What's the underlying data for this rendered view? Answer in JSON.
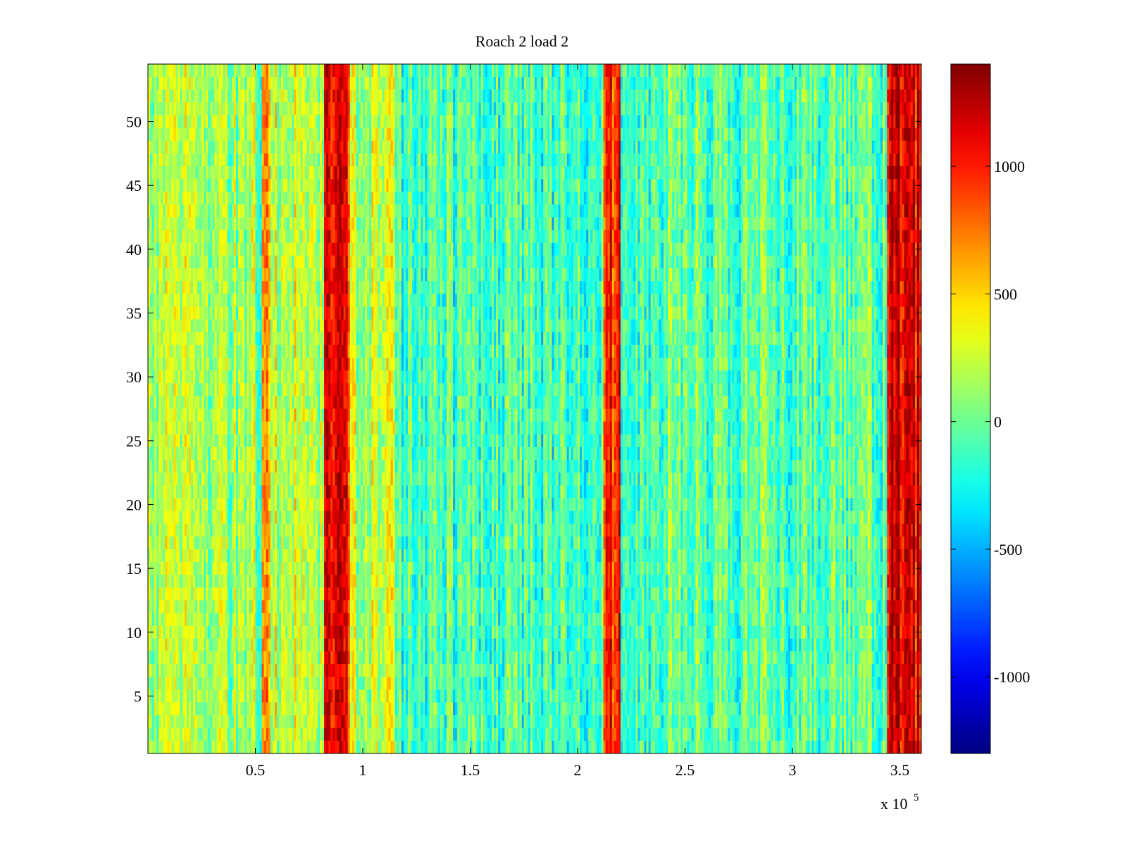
{
  "chart_data": {
    "type": "heatmap",
    "title": "Roach 2 load 2",
    "xlabel": "",
    "ylabel": "",
    "x_exponent_label": "x 10",
    "x_exponent": "5",
    "xlim": [
      0,
      360000
    ],
    "ylim": [
      0.5,
      54.5
    ],
    "rows": 54,
    "x_ticks": [
      {
        "value": 50000,
        "label": "0.5"
      },
      {
        "value": 100000,
        "label": "1"
      },
      {
        "value": 150000,
        "label": "1.5"
      },
      {
        "value": 200000,
        "label": "2"
      },
      {
        "value": 250000,
        "label": "2.5"
      },
      {
        "value": 300000,
        "label": "3"
      },
      {
        "value": 350000,
        "label": "3.5"
      }
    ],
    "y_ticks": [
      {
        "value": 5,
        "label": "5"
      },
      {
        "value": 10,
        "label": "10"
      },
      {
        "value": 15,
        "label": "15"
      },
      {
        "value": 20,
        "label": "20"
      },
      {
        "value": 25,
        "label": "25"
      },
      {
        "value": 30,
        "label": "30"
      },
      {
        "value": 35,
        "label": "35"
      },
      {
        "value": 40,
        "label": "40"
      },
      {
        "value": 45,
        "label": "45"
      },
      {
        "value": 50,
        "label": "50"
      }
    ],
    "colorbar": {
      "colormap": "jet",
      "range": [
        -1300,
        1400
      ],
      "ticks": [
        {
          "value": 1000,
          "label": "1000"
        },
        {
          "value": 500,
          "label": "500"
        },
        {
          "value": 0,
          "label": "0"
        },
        {
          "value": -500,
          "label": "-500"
        },
        {
          "value": -1000,
          "label": "-1000"
        }
      ]
    },
    "bands": [
      {
        "x_start": 0,
        "x_end": 50000,
        "level": 150
      },
      {
        "x_start": 53000,
        "x_end": 57000,
        "level": 600
      },
      {
        "x_start": 57000,
        "x_end": 82000,
        "level": 250
      },
      {
        "x_start": 82000,
        "x_end": 94000,
        "level": 1000
      },
      {
        "x_start": 94000,
        "x_end": 115000,
        "level": 200
      },
      {
        "x_start": 115000,
        "x_end": 212000,
        "level": -100
      },
      {
        "x_start": 212000,
        "x_end": 220000,
        "level": 950
      },
      {
        "x_start": 220000,
        "x_end": 344000,
        "level": -50
      },
      {
        "x_start": 344000,
        "x_end": 360000,
        "level": 1150
      }
    ]
  }
}
